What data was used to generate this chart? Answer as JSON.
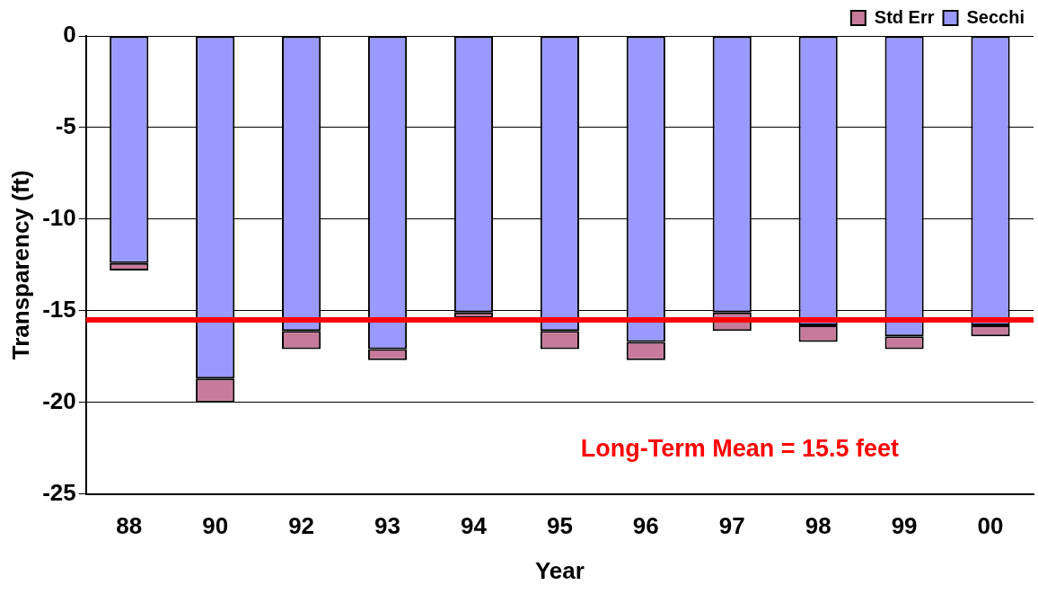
{
  "chart_data": {
    "type": "bar",
    "stacked": true,
    "xlabel": "Year",
    "ylabel": "Transparency (ft)",
    "categories": [
      "88",
      "90",
      "92",
      "93",
      "94",
      "95",
      "96",
      "97",
      "98",
      "99",
      "00"
    ],
    "series": [
      {
        "name": "Secchi",
        "color": "#9999ff",
        "values": [
          -12.4,
          -18.7,
          -16.1,
          -17.1,
          -15.1,
          -16.1,
          -16.7,
          -15.1,
          -15.8,
          -16.4,
          -15.8
        ]
      },
      {
        "name": "Std Err",
        "color": "#c77a99",
        "values": [
          -0.4,
          -1.3,
          -1.0,
          -0.6,
          -0.3,
          -1.0,
          -1.0,
          -1.0,
          -0.9,
          -0.7,
          -0.6
        ]
      }
    ],
    "ylim": [
      -25,
      0
    ],
    "yticks": [
      -25,
      -20,
      -15,
      -10,
      -5,
      0
    ],
    "grid": "y",
    "legend": "top right",
    "ref_lines": [
      {
        "axis": "y",
        "value": -15.5,
        "color": "#ff0000"
      }
    ],
    "annotations": [
      "Long-Term Mean = 15.5 feet"
    ]
  }
}
